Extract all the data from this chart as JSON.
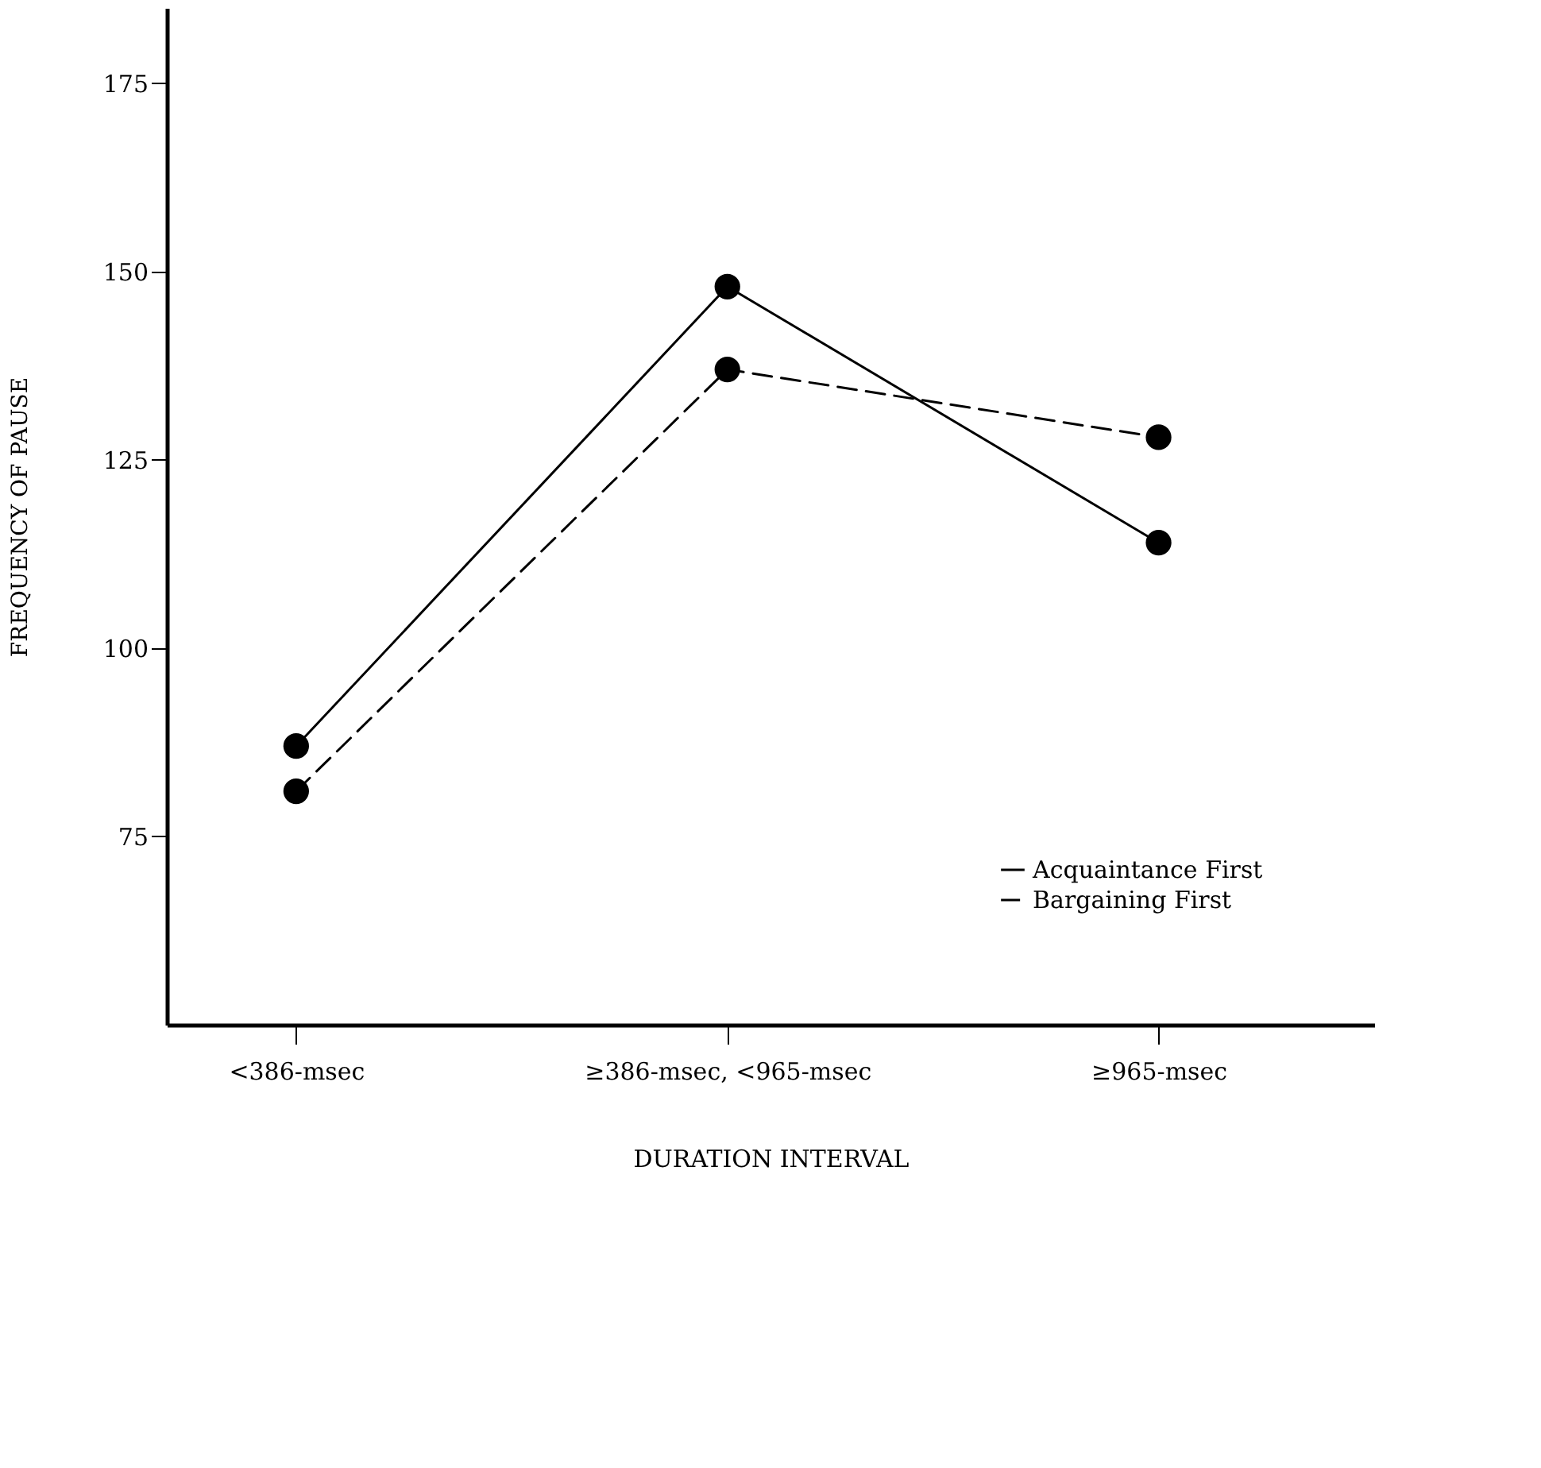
{
  "chart_data": {
    "type": "line",
    "xlabel": "DURATION INTERVAL",
    "ylabel": "FREQUENCY OF PAUSE",
    "categories": [
      "<386-msec",
      "≥386-msec, <965-msec",
      "≥965-msec"
    ],
    "series": [
      {
        "name": "Acquaintance First",
        "color": "#000000",
        "line_style": "solid",
        "values": [
          87,
          148,
          114
        ]
      },
      {
        "name": "Bargaining First",
        "color": "#000000",
        "line_style": "dashed",
        "values": [
          81,
          137,
          128
        ]
      }
    ],
    "ylim": [
      50,
      185
    ],
    "yticks": [
      75,
      100,
      125,
      150,
      175
    ],
    "marker": "circle",
    "legend": "bottom right",
    "grid": false
  }
}
